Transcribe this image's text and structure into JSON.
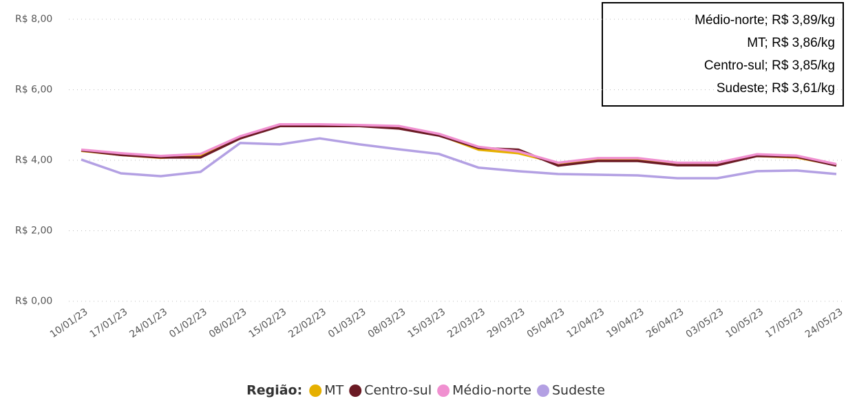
{
  "chart_data": {
    "type": "line",
    "categories": [
      "10/01/23",
      "17/01/23",
      "24/01/23",
      "01/02/23",
      "08/02/23",
      "15/02/23",
      "22/02/23",
      "01/03/23",
      "08/03/23",
      "15/03/23",
      "22/03/23",
      "29/03/23",
      "05/04/23",
      "12/04/23",
      "19/04/23",
      "26/04/23",
      "03/05/23",
      "10/05/23",
      "17/05/23",
      "24/05/23"
    ],
    "series": [
      {
        "name": "MT",
        "color": "#e6b000",
        "values": [
          4.27,
          4.15,
          4.07,
          4.12,
          4.62,
          5.0,
          5.0,
          4.98,
          4.93,
          4.72,
          4.3,
          4.2,
          3.92,
          4.02,
          4.02,
          3.9,
          3.9,
          4.12,
          4.08,
          3.86
        ]
      },
      {
        "name": "Centro-sul",
        "color": "#6b1a24",
        "values": [
          4.28,
          4.15,
          4.08,
          4.08,
          4.62,
          4.97,
          4.97,
          4.97,
          4.9,
          4.7,
          4.35,
          4.3,
          3.85,
          3.98,
          3.98,
          3.86,
          3.86,
          4.12,
          4.1,
          3.85
        ]
      },
      {
        "name": "Médio-norte",
        "color": "#f090d0",
        "values": [
          4.3,
          4.2,
          4.12,
          4.18,
          4.68,
          5.02,
          5.02,
          5.0,
          4.97,
          4.75,
          4.38,
          4.25,
          3.93,
          4.06,
          4.06,
          3.93,
          3.93,
          4.17,
          4.13,
          3.89
        ]
      },
      {
        "name": "Sudeste",
        "color": "#b3a0e3",
        "values": [
          4.02,
          3.63,
          3.55,
          3.67,
          4.49,
          4.45,
          4.62,
          4.45,
          4.31,
          4.18,
          3.79,
          3.69,
          3.61,
          3.59,
          3.57,
          3.49,
          3.49,
          3.69,
          3.71,
          3.61
        ]
      }
    ],
    "ylim": [
      0,
      8
    ],
    "yticks": [
      {
        "value": 0,
        "label": "R$ 0,00"
      },
      {
        "value": 2,
        "label": "R$ 2,00"
      },
      {
        "value": 4,
        "label": "R$ 4,00"
      },
      {
        "value": 6,
        "label": "R$ 6,00"
      },
      {
        "value": 8,
        "label": "R$ 8,00"
      }
    ],
    "grid": true,
    "legend_title": "Região:",
    "annotations": [
      "Médio-norte; R$ 3,89/kg",
      "MT; R$ 3,86/kg",
      "Centro-sul; R$ 3,85/kg",
      "Sudeste; R$ 3,61/kg"
    ]
  }
}
